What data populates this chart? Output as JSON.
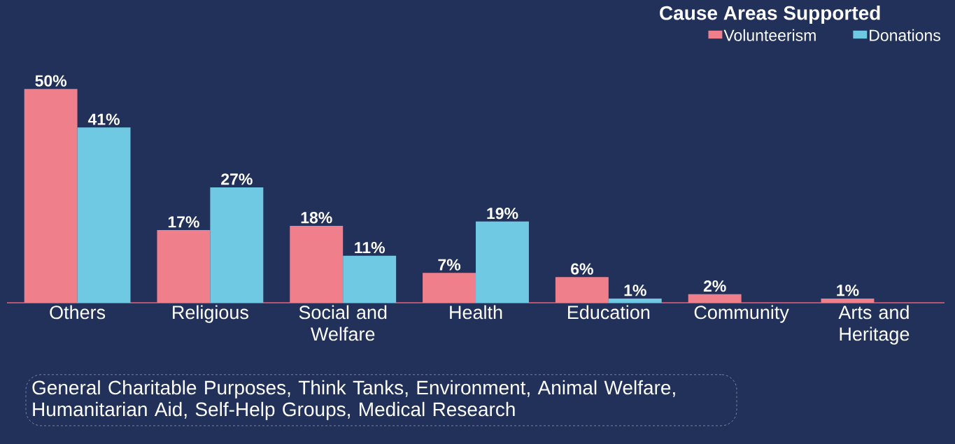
{
  "chart_data": {
    "type": "bar",
    "categories": [
      "Others",
      "Religious",
      "Social and Welfare",
      "Health",
      "Education",
      "Community",
      "Arts and Heritage"
    ],
    "legend_title": "Cause Areas Supported",
    "legend": "top right",
    "series": [
      {
        "name": "Volunteerism",
        "color": "#f07f8c",
        "values": [
          50,
          17,
          18,
          7,
          6,
          2,
          1
        ],
        "value_labels": [
          "50%",
          "17%",
          "18%",
          "7%",
          "6%",
          "2%",
          "1%"
        ]
      },
      {
        "name": "Donations",
        "color": "#6fc9e3",
        "values": [
          41,
          27,
          11,
          19,
          1,
          null,
          null
        ],
        "value_labels": [
          "41%",
          "27%",
          "11%",
          "19%",
          "1%",
          null,
          null
        ]
      }
    ],
    "annotations": [
      "General Charitable Purposes, Think Tanks, Environment, Animal Welfare, Humanitarian Aid, Self-Help Groups, Medical Research"
    ]
  }
}
